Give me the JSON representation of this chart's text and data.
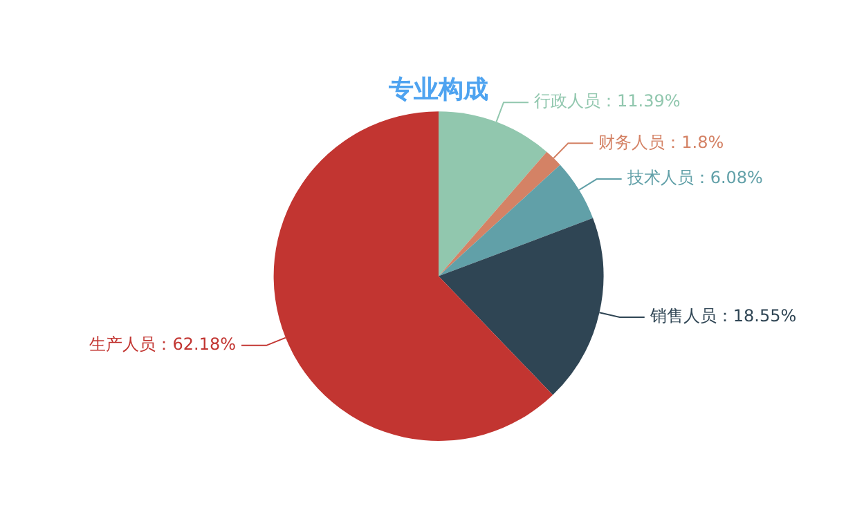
{
  "chart_data": {
    "type": "pie",
    "title": "专业构成",
    "categories": [
      "行政人员",
      "财务人员",
      "技术人员",
      "销售人员",
      "生产人员"
    ],
    "values": [
      11.39,
      1.8,
      6.08,
      18.55,
      62.18
    ],
    "value_labels": [
      "：11.39%",
      "：1.8%",
      "：6.08%",
      "：18.55%",
      "：62.18%"
    ],
    "colors": [
      "#91c7ae",
      "#d48265",
      "#61a0a8",
      "#2f4554",
      "#c23531"
    ],
    "legend": false
  }
}
